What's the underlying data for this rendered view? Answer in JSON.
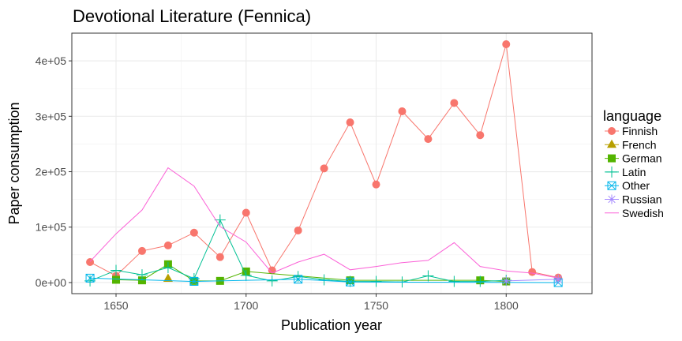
{
  "chart_data": {
    "type": "line",
    "title": "Devotional Literature (Fennica)",
    "xlabel": "Publication year",
    "ylabel": "Paper consumption",
    "xlim": [
      1633,
      1833
    ],
    "ylim": [
      -20000,
      450000
    ],
    "x_ticks": [
      1650,
      1700,
      1750,
      1800
    ],
    "y_ticks": [
      0,
      100000,
      200000,
      300000,
      400000
    ],
    "y_tick_labels": [
      "0e+00",
      "1e+05",
      "2e+05",
      "3e+05",
      "4e+05"
    ],
    "grid": true,
    "legend_title": "language",
    "legend_position": "right",
    "series": [
      {
        "name": "Finnish",
        "color": "#F8766D",
        "marker": "circle",
        "x": [
          1640,
          1650,
          1660,
          1670,
          1680,
          1690,
          1700,
          1710,
          1720,
          1730,
          1740,
          1750,
          1760,
          1770,
          1780,
          1790,
          1800,
          1810,
          1820
        ],
        "y": [
          37000,
          12000,
          57000,
          67000,
          90000,
          46000,
          126000,
          22000,
          94000,
          206000,
          289000,
          177000,
          309000,
          259000,
          324000,
          266000,
          430000,
          19000,
          9000
        ]
      },
      {
        "name": "French",
        "color": "#B79F00",
        "marker": "triangle",
        "x": [
          1670
        ],
        "y": [
          7000
        ]
      },
      {
        "name": "German",
        "color": "#53B400",
        "marker": "square",
        "x": [
          1650,
          1660,
          1670,
          1680,
          1690,
          1700,
          1740,
          1790,
          1800
        ],
        "y": [
          5000,
          4000,
          33000,
          3000,
          3000,
          20000,
          4000,
          4000,
          2000
        ]
      },
      {
        "name": "Latin",
        "color": "#00C094",
        "marker": "plus",
        "x": [
          1640,
          1650,
          1660,
          1670,
          1680,
          1690,
          1700,
          1710,
          1720,
          1730,
          1740,
          1750,
          1760,
          1770,
          1780,
          1790,
          1800
        ],
        "y": [
          3000,
          22000,
          14000,
          27000,
          7000,
          113000,
          13000,
          3000,
          11000,
          5000,
          2000,
          2000,
          1000,
          12000,
          2000,
          2000,
          4000
        ]
      },
      {
        "name": "Other",
        "color": "#00B6EB",
        "marker": "boxcross",
        "x": [
          1640,
          1680,
          1720,
          1740,
          1820
        ],
        "y": [
          8000,
          2000,
          6000,
          1000,
          0
        ]
      },
      {
        "name": "Russian",
        "color": "#A58AFF",
        "marker": "star",
        "x": [
          1800,
          1820
        ],
        "y": [
          3000,
          6000
        ]
      },
      {
        "name": "Swedish",
        "color": "#FB61D7",
        "marker": "none",
        "x": [
          1640,
          1650,
          1660,
          1670,
          1680,
          1690,
          1700,
          1710,
          1720,
          1730,
          1740,
          1750,
          1760,
          1770,
          1780,
          1790,
          1800,
          1810,
          1820
        ],
        "y": [
          38000,
          88000,
          131000,
          207000,
          174000,
          101000,
          73000,
          17000,
          37000,
          51000,
          23000,
          29000,
          36000,
          40000,
          72000,
          29000,
          21000,
          17000,
          8000
        ]
      }
    ]
  }
}
